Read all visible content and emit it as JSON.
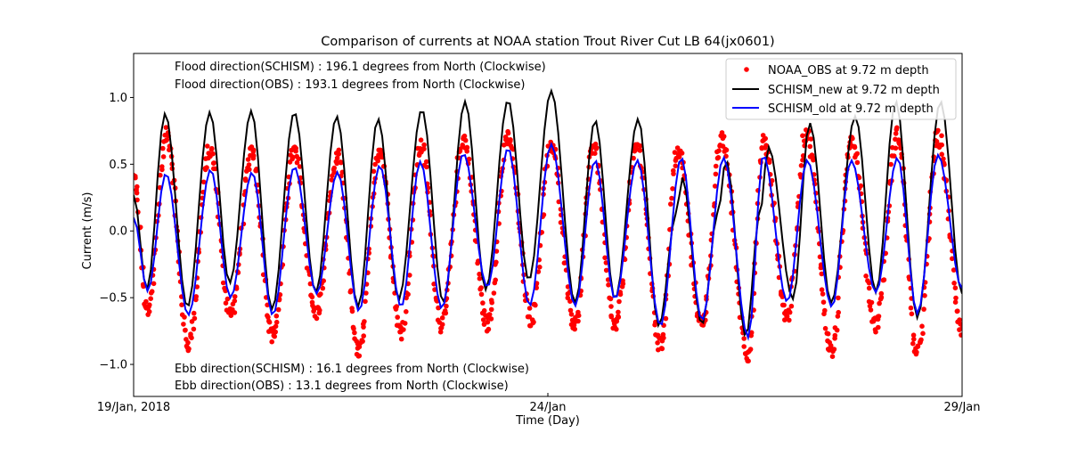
{
  "chart_data": {
    "type": "line",
    "title": "Comparison of currents at NOAA station Trout River Cut LB 64(jx0601)",
    "xlabel": "Time (Day)",
    "ylabel": "Current (m/s)",
    "xlim_days": [
      0,
      10
    ],
    "ylim": [
      -1.24,
      1.33
    ],
    "x_ticks": [
      {
        "day": 0,
        "label": "19/Jan, 2018"
      },
      {
        "day": 5,
        "label": "24/Jan"
      },
      {
        "day": 10,
        "label": "29/Jan"
      }
    ],
    "y_ticks": [
      {
        "value": 1.0,
        "label": "1.0"
      },
      {
        "value": 0.5,
        "label": "0.5"
      },
      {
        "value": 0.0,
        "label": "0.0"
      },
      {
        "value": -0.5,
        "label": "−0.5"
      },
      {
        "value": -1.0,
        "label": "−1.0"
      }
    ],
    "grid": false,
    "legend": {
      "position": "top-right",
      "entries": [
        {
          "label": "NOAA_OBS at 9.72 m depth",
          "color": "#ff0000",
          "marker": "dot"
        },
        {
          "label": "SCHISM_new at 9.72 m depth",
          "color": "#000000",
          "marker": "line"
        },
        {
          "label": "SCHISM_old at 9.72 m depth",
          "color": "#0000ff",
          "marker": "line"
        }
      ]
    },
    "annotations": {
      "flood_schism": "Flood direction(SCHISM) : 196.1 degrees from North (Clockwise)",
      "flood_obs": "Flood direction(OBS) : 193.1 degrees from North (Clockwise)",
      "ebb_schism": "Ebb direction(SCHISM) : 16.1 degrees from North (Clockwise)",
      "ebb_obs": "Ebb direction(OBS) : 13.1 degrees from North (Clockwise)"
    },
    "series": [
      {
        "name": "SCHISM_new at 9.72 m depth",
        "color": "#000000",
        "extrema": [
          [
            0,
            0.27
          ],
          [
            0.16,
            -0.44
          ],
          [
            0.38,
            0.88
          ],
          [
            0.65,
            -0.57
          ],
          [
            0.92,
            0.89
          ],
          [
            1.16,
            -0.39
          ],
          [
            1.42,
            0.9
          ],
          [
            1.67,
            -0.59
          ],
          [
            1.94,
            0.89
          ],
          [
            2.2,
            -0.46
          ],
          [
            2.45,
            0.86
          ],
          [
            2.71,
            -0.57
          ],
          [
            2.95,
            0.84
          ],
          [
            3.2,
            -0.51
          ],
          [
            3.48,
            0.91
          ],
          [
            3.74,
            -0.54
          ],
          [
            4.0,
            0.97
          ],
          [
            4.25,
            -0.44
          ],
          [
            4.52,
            0.98
          ],
          [
            4.77,
            -0.37
          ],
          [
            5.04,
            1.05
          ],
          [
            5.33,
            -0.54
          ],
          [
            5.57,
            0.83
          ],
          [
            5.81,
            -0.51
          ],
          [
            6.09,
            0.84
          ],
          [
            6.34,
            -0.71
          ],
          [
            6.55,
            0.13
          ],
          [
            6.62,
            0.4
          ],
          [
            6.86,
            -0.7
          ],
          [
            7.05,
            0.13
          ],
          [
            7.15,
            0.53
          ],
          [
            7.39,
            -0.79
          ],
          [
            7.56,
            0.14
          ],
          [
            7.66,
            0.63
          ],
          [
            7.96,
            -0.51
          ],
          [
            8.16,
            0.81
          ],
          [
            8.42,
            -0.54
          ],
          [
            8.71,
            0.86
          ],
          [
            8.96,
            -0.46
          ],
          [
            9.2,
            0.97
          ],
          [
            9.46,
            -0.65
          ],
          [
            9.74,
            0.97
          ],
          [
            10.0,
            -0.47
          ]
        ]
      },
      {
        "name": "SCHISM_old at 9.72 m depth",
        "color": "#0000ff",
        "extrema": [
          [
            0,
            0.1
          ],
          [
            0.17,
            -0.45
          ],
          [
            0.39,
            0.43
          ],
          [
            0.66,
            -0.63
          ],
          [
            0.93,
            0.46
          ],
          [
            1.17,
            -0.5
          ],
          [
            1.43,
            0.44
          ],
          [
            1.68,
            -0.63
          ],
          [
            1.94,
            0.48
          ],
          [
            2.21,
            -0.47
          ],
          [
            2.46,
            0.44
          ],
          [
            2.72,
            -0.6
          ],
          [
            2.97,
            0.49
          ],
          [
            3.23,
            -0.57
          ],
          [
            3.46,
            0.52
          ],
          [
            3.72,
            -0.58
          ],
          [
            3.98,
            0.58
          ],
          [
            4.27,
            -0.42
          ],
          [
            4.52,
            0.62
          ],
          [
            4.78,
            -0.56
          ],
          [
            5.04,
            0.65
          ],
          [
            5.33,
            -0.56
          ],
          [
            5.57,
            0.53
          ],
          [
            5.81,
            -0.51
          ],
          [
            6.08,
            0.53
          ],
          [
            6.36,
            -0.71
          ],
          [
            6.61,
            0.55
          ],
          [
            6.86,
            -0.67
          ],
          [
            7.12,
            0.55
          ],
          [
            7.42,
            -0.8
          ],
          [
            7.6,
            0.57
          ],
          [
            7.89,
            -0.53
          ],
          [
            8.13,
            0.53
          ],
          [
            8.43,
            -0.57
          ],
          [
            8.66,
            0.53
          ],
          [
            8.96,
            -0.46
          ],
          [
            9.22,
            0.55
          ],
          [
            9.46,
            -0.62
          ],
          [
            9.71,
            0.57
          ],
          [
            10.0,
            -0.43
          ]
        ]
      },
      {
        "name": "NOAA_OBS at 9.72 m depth",
        "color": "#ff0000",
        "extrema": [
          [
            0,
            0.4
          ],
          [
            0.17,
            -0.62
          ],
          [
            0.4,
            0.72
          ],
          [
            0.66,
            -0.85
          ],
          [
            0.92,
            0.6
          ],
          [
            1.17,
            -0.62
          ],
          [
            1.43,
            0.58
          ],
          [
            1.68,
            -0.78
          ],
          [
            1.94,
            0.6
          ],
          [
            2.2,
            -0.62
          ],
          [
            2.46,
            0.55
          ],
          [
            2.72,
            -0.92
          ],
          [
            2.97,
            0.62
          ],
          [
            3.23,
            -0.76
          ],
          [
            3.47,
            0.64
          ],
          [
            3.72,
            -0.7
          ],
          [
            3.98,
            0.69
          ],
          [
            4.27,
            -0.7
          ],
          [
            4.52,
            0.7
          ],
          [
            4.8,
            -0.66
          ],
          [
            5.04,
            0.64
          ],
          [
            5.33,
            -0.7
          ],
          [
            5.55,
            0.65
          ],
          [
            5.81,
            -0.72
          ],
          [
            6.08,
            0.64
          ],
          [
            6.36,
            -0.86
          ],
          [
            6.57,
            0.6
          ],
          [
            6.86,
            -0.7
          ],
          [
            7.1,
            0.68
          ],
          [
            7.42,
            -0.92
          ],
          [
            7.6,
            0.68
          ],
          [
            7.89,
            -0.64
          ],
          [
            8.12,
            0.74
          ],
          [
            8.43,
            -0.9
          ],
          [
            8.66,
            0.7
          ],
          [
            8.96,
            -0.7
          ],
          [
            9.22,
            0.72
          ],
          [
            9.46,
            -0.92
          ],
          [
            9.71,
            0.7
          ],
          [
            10.0,
            -0.74
          ]
        ]
      }
    ]
  }
}
